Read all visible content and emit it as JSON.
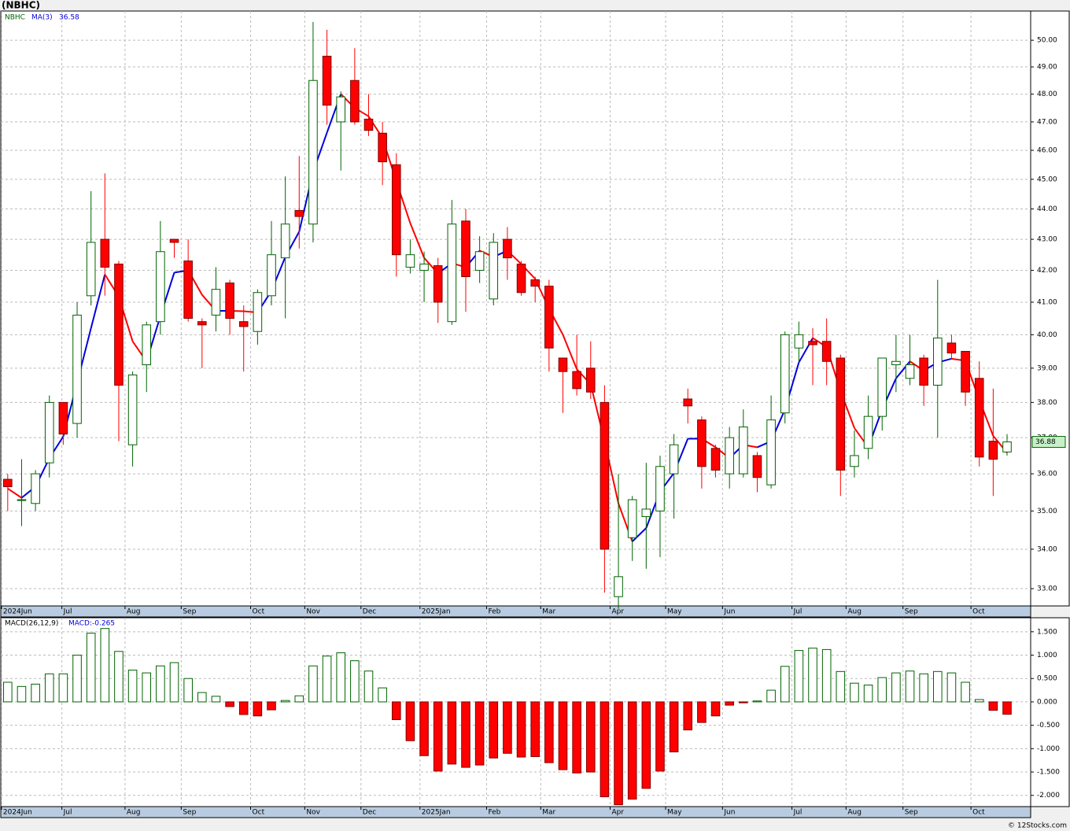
{
  "title": "(NBHC)",
  "watermark": "© 12Stocks.com",
  "chart_data": [
    {
      "type": "candlestick",
      "symbol": "NBHC",
      "ma_label": "MA(3)",
      "log_scale": true,
      "grid": true,
      "up_color": "#006400",
      "down_color": "#ff0000",
      "ma_up_color": "#0000dd",
      "ma_down_color": "#ff0000",
      "categories": [
        null,
        null,
        null,
        null,
        null,
        null,
        null,
        null,
        null,
        null,
        null,
        null,
        null,
        null,
        null,
        null,
        null,
        null,
        null,
        null,
        null,
        null,
        null,
        null,
        null,
        null,
        null,
        null,
        null,
        null,
        null,
        null,
        null,
        null,
        null,
        null,
        null,
        null,
        null,
        null,
        null,
        null,
        null,
        null,
        null,
        null,
        null,
        null,
        null,
        null,
        null,
        null,
        null,
        null,
        null,
        null,
        null,
        null,
        null,
        null,
        null,
        null,
        null,
        null,
        null,
        null,
        null,
        null,
        null,
        null,
        null,
        null,
        null
      ],
      "open": [
        35.85,
        35.3,
        35.2,
        36.3,
        38.0,
        37.4,
        41.2,
        43.0,
        42.2,
        36.8,
        39.1,
        40.4,
        43.0,
        42.3,
        40.4,
        40.6,
        41.6,
        40.4,
        40.1,
        41.2,
        42.4,
        43.95,
        43.5,
        49.4,
        47.0,
        48.5,
        47.1,
        46.6,
        45.5,
        42.1,
        42.0,
        42.15,
        40.4,
        43.6,
        42.0,
        41.1,
        43.0,
        42.2,
        41.7,
        41.5,
        39.3,
        38.9,
        39.0,
        38.0,
        32.8,
        34.3,
        34.85,
        35.0,
        36.0,
        38.1,
        37.5,
        36.7,
        36.0,
        36.0,
        36.5,
        35.7,
        37.7,
        39.6,
        39.8,
        39.8,
        39.3,
        36.2,
        36.7,
        37.6,
        39.1,
        38.7,
        39.3,
        38.5,
        39.75,
        39.5,
        38.7,
        36.9,
        36.6
      ],
      "high": [
        36.0,
        36.4,
        36.1,
        38.2,
        38.0,
        41.0,
        44.6,
        45.2,
        42.3,
        38.9,
        40.4,
        43.6,
        43.0,
        43.0,
        40.5,
        42.1,
        41.7,
        40.9,
        41.4,
        43.6,
        45.1,
        45.8,
        50.7,
        50.4,
        48.1,
        49.7,
        48.0,
        47.0,
        45.9,
        43.0,
        42.6,
        42.4,
        44.3,
        44.0,
        43.1,
        43.2,
        43.4,
        42.3,
        41.8,
        41.7,
        39.3,
        40.0,
        39.8,
        38.5,
        36.0,
        35.4,
        36.3,
        36.5,
        37.1,
        38.4,
        37.6,
        36.8,
        37.3,
        37.8,
        36.6,
        38.2,
        40.1,
        40.4,
        40.2,
        40.5,
        39.4,
        37.2,
        38.2,
        39.3,
        40.0,
        40.0,
        39.4,
        41.7,
        40.0,
        39.5,
        39.2,
        38.4,
        37.1
      ],
      "low": [
        35.0,
        34.6,
        35.0,
        35.9,
        36.8,
        37.0,
        40.9,
        41.2,
        36.9,
        36.2,
        38.3,
        40.0,
        42.4,
        40.4,
        39.0,
        40.1,
        40.0,
        38.9,
        39.7,
        40.9,
        40.5,
        42.7,
        42.9,
        46.9,
        45.3,
        46.9,
        46.5,
        44.8,
        41.8,
        41.9,
        41.0,
        40.36,
        40.3,
        40.7,
        41.6,
        40.9,
        41.7,
        41.2,
        41.0,
        38.9,
        37.7,
        38.2,
        38.1,
        32.9,
        32.5,
        33.7,
        33.5,
        33.8,
        34.8,
        37.4,
        35.6,
        35.9,
        35.6,
        35.9,
        35.5,
        35.6,
        37.4,
        39.2,
        38.5,
        38.5,
        35.4,
        35.9,
        36.4,
        37.2,
        38.3,
        38.5,
        37.9,
        37.0,
        39.3,
        37.9,
        36.2,
        35.4,
        36.5
      ],
      "close": [
        35.65,
        35.3,
        36.0,
        38.0,
        37.1,
        40.6,
        42.9,
        42.1,
        38.5,
        38.8,
        40.3,
        42.6,
        42.9,
        40.5,
        40.3,
        41.4,
        40.5,
        40.25,
        41.3,
        42.5,
        43.5,
        43.75,
        48.5,
        47.6,
        47.9,
        47.0,
        46.7,
        45.6,
        42.5,
        42.5,
        42.2,
        41.0,
        43.5,
        41.8,
        42.6,
        42.9,
        42.4,
        41.3,
        41.5,
        39.6,
        38.9,
        38.4,
        38.3,
        34.0,
        33.3,
        35.3,
        35.05,
        36.2,
        36.8,
        37.9,
        36.2,
        36.1,
        37.0,
        37.3,
        35.9,
        37.5,
        40.0,
        40.0,
        39.7,
        39.2,
        36.1,
        36.5,
        37.6,
        39.3,
        39.2,
        39.1,
        38.5,
        39.9,
        39.45,
        38.3,
        36.46,
        36.4,
        36.88
      ],
      "ma": [
        35.6,
        35.35,
        35.65,
        36.43,
        37.03,
        38.57,
        40.2,
        41.87,
        41.17,
        39.8,
        39.2,
        40.57,
        41.93,
        42.0,
        41.23,
        40.73,
        40.73,
        40.72,
        40.68,
        41.35,
        42.43,
        43.25,
        45.25,
        46.62,
        48.0,
        47.5,
        47.2,
        46.43,
        44.93,
        43.53,
        42.4,
        41.9,
        42.23,
        42.1,
        42.63,
        42.43,
        42.63,
        42.2,
        41.73,
        40.8,
        40.0,
        38.97,
        38.53,
        36.9,
        35.2,
        34.2,
        34.55,
        35.52,
        36.02,
        36.97,
        36.97,
        36.73,
        36.43,
        36.8,
        36.73,
        36.9,
        37.8,
        39.17,
        39.9,
        39.63,
        38.33,
        37.27,
        36.73,
        37.8,
        38.7,
        39.2,
        38.93,
        39.17,
        39.28,
        39.22,
        38.07,
        37.05,
        36.58
      ],
      "xlim": [
        -0.5,
        73.7
      ],
      "xticks": [
        {
          "value": -0.45,
          "label": "2024Jun"
        },
        {
          "value": 3.9,
          "label": "Jul"
        },
        {
          "value": 8.45,
          "label": "Aug"
        },
        {
          "value": 12.5,
          "label": "Sep"
        },
        {
          "value": 17.5,
          "label": "Oct"
        },
        {
          "value": 21.4,
          "label": "Nov"
        },
        {
          "value": 25.45,
          "label": "Dec"
        },
        {
          "value": 29.7,
          "label": "2025Jan"
        },
        {
          "value": 34.5,
          "label": "Feb"
        },
        {
          "value": 38.4,
          "label": "Mar"
        },
        {
          "value": 43.4,
          "label": "Apr"
        },
        {
          "value": 47.4,
          "label": "May"
        },
        {
          "value": 51.5,
          "label": "Jun"
        },
        {
          "value": 56.5,
          "label": "Jul"
        },
        {
          "value": 60.4,
          "label": "Aug"
        },
        {
          "value": 64.5,
          "label": "Sep"
        },
        {
          "value": 69.4,
          "label": "Oct"
        }
      ],
      "ylim": [
        32.57,
        51.12
      ],
      "yticks": [
        {
          "value": 33,
          "label": "33.00"
        },
        {
          "value": 34,
          "label": "34.00"
        },
        {
          "value": 35,
          "label": "35.00"
        },
        {
          "value": 36,
          "label": "36.00"
        },
        {
          "value": 37,
          "label": "37.00"
        },
        {
          "value": 38,
          "label": "38.00"
        },
        {
          "value": 39,
          "label": "39.00"
        },
        {
          "value": 40,
          "label": "40.00"
        },
        {
          "value": 41,
          "label": "41.00"
        },
        {
          "value": 42,
          "label": "42.00"
        },
        {
          "value": 43,
          "label": "43.00"
        },
        {
          "value": 44,
          "label": "44.00"
        },
        {
          "value": 45,
          "label": "45.00"
        },
        {
          "value": 46,
          "label": "46.00"
        },
        {
          "value": 47,
          "label": "47.00"
        },
        {
          "value": 48,
          "label": "48.00"
        },
        {
          "value": 49,
          "label": "49.00"
        },
        {
          "value": 50,
          "label": "50.00"
        }
      ]
    },
    {
      "type": "bar",
      "label": "MACD(26,12,9)",
      "value_label": "MACD:-0.265",
      "grid": true,
      "up_color": "#006400",
      "down_color": "#ff0000",
      "categories": [
        null,
        null,
        null,
        null,
        null,
        null,
        null,
        null,
        null,
        null,
        null,
        null,
        null,
        null,
        null,
        null,
        null,
        null,
        null,
        null,
        null,
        null,
        null,
        null,
        null,
        null,
        null,
        null,
        null,
        null,
        null,
        null,
        null,
        null,
        null,
        null,
        null,
        null,
        null,
        null,
        null,
        null,
        null,
        null,
        null,
        null,
        null,
        null,
        null,
        null,
        null,
        null,
        null,
        null,
        null,
        null,
        null,
        null,
        null,
        null,
        null,
        null,
        null,
        null,
        null,
        null,
        null,
        null,
        null,
        null,
        null,
        null,
        null
      ],
      "values": [
        0.42,
        0.33,
        0.38,
        0.6,
        0.6,
        1.0,
        1.47,
        1.57,
        1.08,
        0.68,
        0.62,
        0.77,
        0.84,
        0.5,
        0.2,
        0.12,
        -0.1,
        -0.27,
        -0.3,
        -0.17,
        0.03,
        0.13,
        0.77,
        0.98,
        1.05,
        0.88,
        0.66,
        0.3,
        -0.38,
        -0.83,
        -1.15,
        -1.48,
        -1.33,
        -1.4,
        -1.35,
        -1.2,
        -1.1,
        -1.18,
        -1.17,
        -1.3,
        -1.45,
        -1.52,
        -1.5,
        -2.03,
        -2.2,
        -2.08,
        -1.85,
        -1.48,
        -1.07,
        -0.6,
        -0.44,
        -0.3,
        -0.07,
        -0.02,
        0.02,
        0.25,
        0.76,
        1.1,
        1.15,
        1.12,
        0.65,
        0.4,
        0.36,
        0.52,
        0.62,
        0.66,
        0.6,
        0.65,
        0.62,
        0.42,
        0.05,
        -0.18,
        -0.265
      ],
      "xlim": [
        -0.5,
        73.7
      ],
      "xticks": [
        {
          "value": -0.45,
          "label": "2024Jun"
        },
        {
          "value": 3.9,
          "label": "Jul"
        },
        {
          "value": 8.45,
          "label": "Aug"
        },
        {
          "value": 12.5,
          "label": "Sep"
        },
        {
          "value": 17.5,
          "label": "Oct"
        },
        {
          "value": 21.4,
          "label": "Nov"
        },
        {
          "value": 25.45,
          "label": "Dec"
        },
        {
          "value": 29.7,
          "label": "2025Jan"
        },
        {
          "value": 34.5,
          "label": "Feb"
        },
        {
          "value": 38.4,
          "label": "Mar"
        },
        {
          "value": 43.4,
          "label": "Apr"
        },
        {
          "value": 47.4,
          "label": "May"
        },
        {
          "value": 51.5,
          "label": "Jun"
        },
        {
          "value": 56.5,
          "label": "Jul"
        },
        {
          "value": 60.4,
          "label": "Aug"
        },
        {
          "value": 64.5,
          "label": "Sep"
        },
        {
          "value": 69.4,
          "label": "Oct"
        }
      ],
      "ylim": [
        -2.24,
        1.8
      ],
      "yticks": [
        {
          "value": -2,
          "label": "-2.000"
        },
        {
          "value": -1.5,
          "label": "-1.500"
        },
        {
          "value": -1,
          "label": "-1.000"
        },
        {
          "value": -0.5,
          "label": "-0.500"
        },
        {
          "value": 0,
          "label": "0.000"
        },
        {
          "value": 0.5,
          "label": "0.500"
        },
        {
          "value": 1,
          "label": "1.000"
        },
        {
          "value": 1.5,
          "label": "1.500"
        }
      ]
    }
  ]
}
